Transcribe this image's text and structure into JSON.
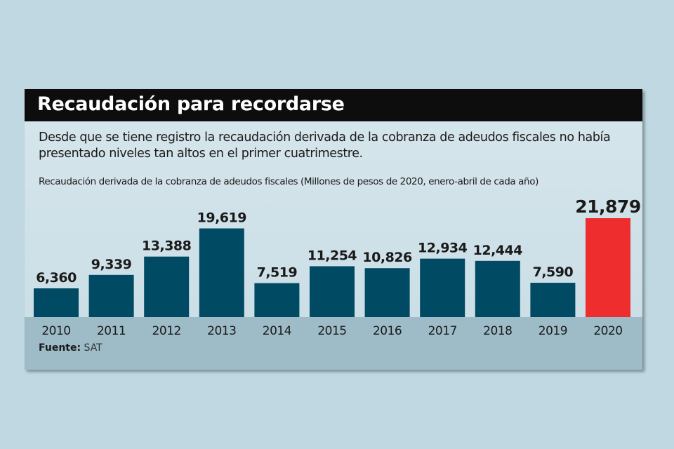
{
  "header": {
    "title": "Recaudación para recordarse"
  },
  "description": "Desde que se tiene registro la recaudación derivada de la cobranza de adeudos fiscales no había presentado niveles tan altos en el primer cuatrimestre.",
  "source": {
    "label": "Fuente:",
    "value": "SAT"
  },
  "colors": {
    "bar": "#004a63",
    "highlight": "#ee2d2f"
  },
  "chart_data": {
    "type": "bar",
    "title": "Recaudación derivada de la cobranza de adeudos fiscales (Millones de pesos de 2020, enero-abril de cada año)",
    "categories": [
      "2010",
      "2011",
      "2012",
      "2013",
      "2014",
      "2015",
      "2016",
      "2017",
      "2018",
      "2019",
      "2020"
    ],
    "values": [
      6360,
      9339,
      13388,
      19619,
      7519,
      11254,
      10826,
      12934,
      12444,
      7590,
      21879
    ],
    "labels": [
      "6,360",
      "9,339",
      "13,388",
      "19,619",
      "7,519",
      "11,254",
      "10,826",
      "12,934",
      "12,444",
      "7,590",
      "21,879"
    ],
    "highlight_index": 10,
    "xlabel": "",
    "ylabel": "",
    "ylim": [
      0,
      21879
    ],
    "grid": false
  }
}
